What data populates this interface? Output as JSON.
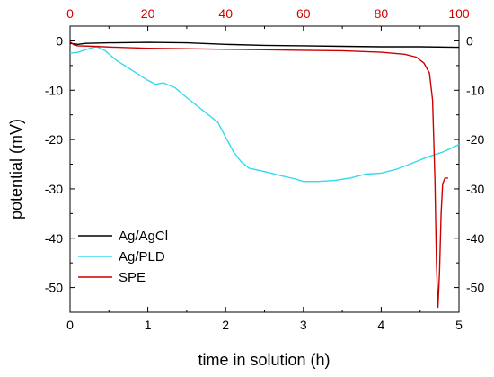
{
  "chart_data": {
    "type": "line",
    "xlabel": "time in solution (h)",
    "ylabel": "potential (mV)",
    "xlim": [
      0,
      5
    ],
    "ylim": [
      -55,
      3
    ],
    "x_ticks": [
      "0",
      "1",
      "2",
      "3",
      "4",
      "5"
    ],
    "y_ticks": [
      "0",
      "-10",
      "-20",
      "-30",
      "-40",
      "-50"
    ],
    "top_axis": {
      "range": [
        0,
        100
      ],
      "ticks": [
        "0",
        "20",
        "40",
        "60",
        "80",
        "100"
      ],
      "color": "#d40000"
    },
    "right_axis_ticks": [
      "0",
      "-10",
      "-20",
      "-30",
      "-40",
      "-50"
    ],
    "grid": false,
    "legend_position": "bottom-left",
    "series": [
      {
        "name": "Ag/AgCl",
        "color": "#000000",
        "x": [
          0.0,
          0.1,
          0.2,
          0.5,
          1.0,
          1.5,
          2.0,
          2.5,
          3.0,
          3.5,
          4.0,
          4.5,
          5.0
        ],
        "y": [
          -0.5,
          -0.7,
          -0.5,
          -0.4,
          -0.3,
          -0.4,
          -0.7,
          -0.9,
          -1.0,
          -1.1,
          -1.2,
          -1.2,
          -1.3
        ]
      },
      {
        "name": "Ag/PLD",
        "color": "#33d9ee",
        "x": [
          0.0,
          0.1,
          0.2,
          0.3,
          0.35,
          0.45,
          0.6,
          0.8,
          1.0,
          1.1,
          1.2,
          1.35,
          1.5,
          1.7,
          1.9,
          2.0,
          2.1,
          2.2,
          2.3,
          2.5,
          2.7,
          2.9,
          3.0,
          3.2,
          3.4,
          3.6,
          3.8,
          4.0,
          4.2,
          4.4,
          4.6,
          4.8,
          5.0
        ],
        "y": [
          -2.5,
          -2.3,
          -1.8,
          -1.3,
          -1.2,
          -2.0,
          -4.0,
          -6.0,
          -8.0,
          -8.8,
          -8.5,
          -9.5,
          -11.5,
          -14.0,
          -16.5,
          -19.5,
          -22.5,
          -24.5,
          -25.8,
          -26.5,
          -27.3,
          -28.0,
          -28.5,
          -28.5,
          -28.3,
          -27.8,
          -27.0,
          -26.8,
          -26.0,
          -24.8,
          -23.5,
          -22.5,
          -21.0
        ]
      },
      {
        "name": "SPE",
        "color": "#cc0000",
        "x": [
          0.0,
          0.05,
          0.1,
          0.3,
          0.6,
          1.0,
          1.5,
          2.0,
          2.5,
          3.0,
          3.5,
          4.0,
          4.3,
          4.45,
          4.55,
          4.62,
          4.66,
          4.69,
          4.71,
          4.73,
          4.75,
          4.77,
          4.79,
          4.82,
          4.86
        ],
        "y": [
          -0.2,
          -0.8,
          -1.0,
          -1.1,
          -1.3,
          -1.5,
          -1.6,
          -1.7,
          -1.8,
          -1.9,
          -2.0,
          -2.3,
          -2.7,
          -3.3,
          -4.5,
          -6.5,
          -12.0,
          -28.0,
          -45.0,
          -54.0,
          -47.0,
          -35.0,
          -29.0,
          -27.8,
          -27.8
        ]
      }
    ]
  }
}
